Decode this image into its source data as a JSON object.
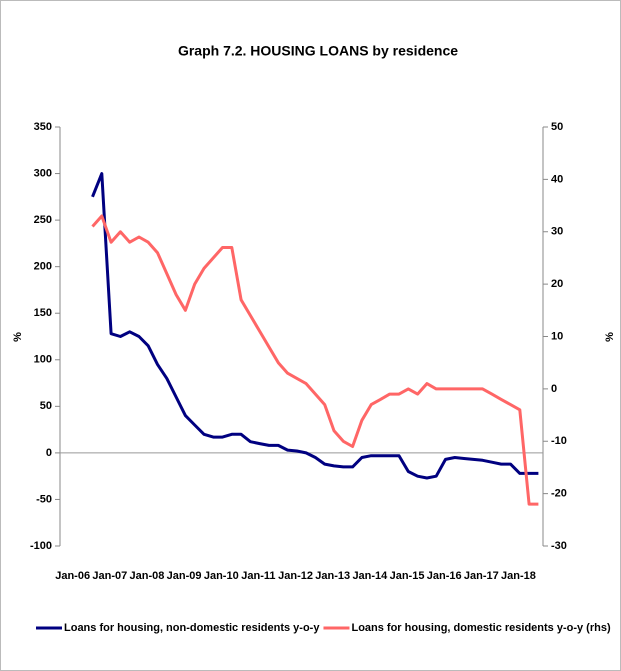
{
  "chart_data": {
    "type": "line",
    "title": "Graph 7.2. HOUSING LOANS by residence",
    "y_label": "%",
    "y2_label": "%",
    "categories": [
      "Jan-06",
      null,
      null,
      null,
      "Jan-07",
      null,
      null,
      null,
      "Jan-08",
      null,
      null,
      null,
      "Jan-09",
      null,
      null,
      null,
      "Jan-10",
      null,
      null,
      null,
      "Jan-11",
      null,
      null,
      null,
      "Jan-12",
      null,
      null,
      null,
      "Jan-13",
      null,
      null,
      null,
      "Jan-14",
      null,
      null,
      null,
      "Jan-15",
      null,
      null,
      null,
      "Jan-16",
      null,
      null,
      null,
      "Jan-17",
      null,
      null,
      null,
      "Jan-18",
      null,
      null,
      null
    ],
    "series": [
      {
        "name": "Loans for housing, non-domestic residents y-o-y",
        "color": "#000080",
        "axis": "y",
        "values": [
          null,
          null,
          null,
          275,
          300,
          128,
          125,
          130,
          125,
          115,
          95,
          80,
          60,
          40,
          30,
          20,
          17,
          17,
          20,
          20,
          12,
          10,
          8,
          8,
          3,
          2,
          0,
          -5,
          -12,
          -14,
          -15,
          -15,
          -5,
          -3,
          -3,
          -3,
          -3,
          -20,
          -25,
          -27,
          -25,
          -7,
          -5,
          -6,
          -7,
          -8,
          -10,
          -12,
          -12,
          -22,
          -22,
          -22
        ]
      },
      {
        "name": "Loans for housing, domestic residents y-o-y (rhs)",
        "color": "#ff6666",
        "axis": "y2",
        "values": [
          null,
          null,
          null,
          31,
          33,
          28,
          30,
          28,
          29,
          28,
          26,
          22,
          18,
          15,
          20,
          23,
          25,
          27,
          27,
          17,
          14,
          11,
          8,
          5,
          3,
          2,
          1,
          -1,
          -3,
          -8,
          -10,
          -11,
          -6,
          -3,
          -2,
          -1,
          -1,
          0,
          -1,
          1,
          0,
          0,
          0,
          0,
          0,
          0,
          -1,
          -2,
          -3,
          -4,
          -22,
          -22
        ]
      }
    ],
    "ylim": [
      -100,
      350
    ],
    "yticks": [
      -100,
      -50,
      0,
      50,
      100,
      150,
      200,
      250,
      300,
      350
    ],
    "y2lim": [
      -30,
      50
    ],
    "y2ticks": [
      -30,
      -20,
      -10,
      0,
      10,
      20,
      30,
      40,
      50
    ],
    "legend": "bottom"
  }
}
